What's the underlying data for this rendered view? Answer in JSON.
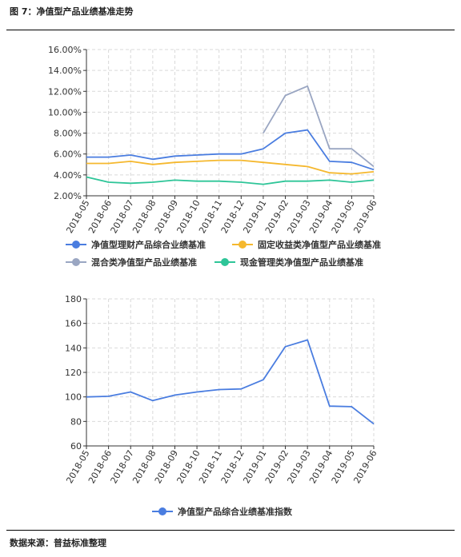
{
  "figure_title": "图 7：净值型产品业绩基准走势",
  "source_note": "数据来源：普益标准整理",
  "chart_data": [
    {
      "type": "line",
      "categories": [
        "2018-05",
        "2018-06",
        "2018-07",
        "2018-08",
        "2018-09",
        "2018-10",
        "2018-11",
        "2018-12",
        "2019-01",
        "2019-02",
        "2019-03",
        "2019-04",
        "2019-05",
        "2019-06"
      ],
      "ylim": [
        2,
        16
      ],
      "yticks": [
        2,
        4,
        6,
        8,
        10,
        12,
        14,
        16
      ],
      "ytick_labels": [
        "2.00%",
        "4.00%",
        "6.00%",
        "8.00%",
        "10.00%",
        "12.00%",
        "14.00%",
        "16.00%"
      ],
      "grid": true,
      "legend_position": "bottom",
      "series": [
        {
          "name": "净值型理财产品综合业绩基准",
          "color": "#4a7de0",
          "marker": false,
          "values": [
            5.7,
            5.7,
            5.9,
            5.5,
            5.8,
            5.9,
            6.0,
            6.0,
            6.5,
            8.0,
            8.3,
            5.3,
            5.2,
            4.5
          ]
        },
        {
          "name": "固定收益类净值型产品业绩基准",
          "color": "#f5b82e",
          "marker": false,
          "values": [
            5.1,
            5.1,
            5.3,
            5.0,
            5.2,
            5.3,
            5.4,
            5.4,
            5.2,
            5.0,
            4.8,
            4.2,
            4.1,
            4.3
          ]
        },
        {
          "name": "混合类净值型产品业绩基准",
          "color": "#9aa6c2",
          "marker": false,
          "values": [
            null,
            null,
            null,
            null,
            null,
            null,
            null,
            null,
            8.0,
            11.6,
            12.5,
            6.5,
            6.5,
            4.8
          ]
        },
        {
          "name": "现金管理类净值型产品业绩基准",
          "color": "#2ec598",
          "marker": false,
          "values": [
            3.8,
            3.3,
            3.2,
            3.3,
            3.5,
            3.4,
            3.4,
            3.3,
            3.1,
            3.4,
            3.4,
            3.5,
            3.3,
            3.5
          ]
        }
      ]
    },
    {
      "type": "line",
      "categories": [
        "2018-05",
        "2018-06",
        "2018-07",
        "2018-08",
        "2018-09",
        "2018-10",
        "2018-11",
        "2018-12",
        "2019-01",
        "2019-02",
        "2019-03",
        "2019-04",
        "2019-05",
        "2019-06"
      ],
      "ylim": [
        60,
        180
      ],
      "yticks": [
        60,
        80,
        100,
        120,
        140,
        160,
        180
      ],
      "ytick_labels": [
        "60",
        "80",
        "100",
        "120",
        "140",
        "160",
        "180"
      ],
      "grid": true,
      "legend_position": "bottom",
      "series": [
        {
          "name": "净值型产品综合业绩基准指数",
          "color": "#4a7de0",
          "marker": false,
          "values": [
            100,
            100.5,
            104,
            97,
            101.5,
            104,
            106,
            106.5,
            114,
            141,
            146.5,
            92.5,
            92,
            78
          ]
        }
      ]
    }
  ]
}
